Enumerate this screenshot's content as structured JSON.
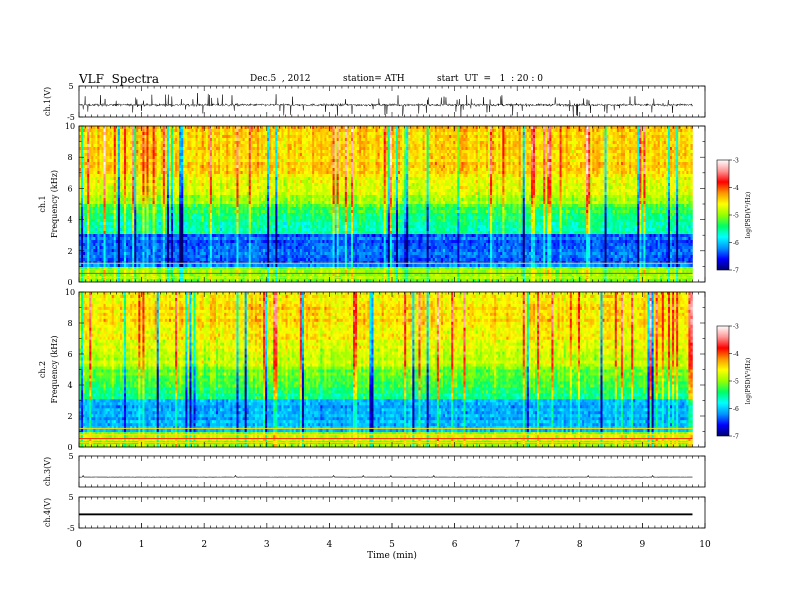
{
  "header": {
    "title": "VLF  Spectra",
    "date": "Dec.5  , 2012",
    "station": "station= ATH",
    "start_ut": "start  UT  =   1  : 20 : 0"
  },
  "chart_data": [
    {
      "type": "line",
      "panel": "ch1-waveform",
      "ylabel": "ch.1(V)",
      "ylim": [
        -5,
        5
      ],
      "ytick_labels": [
        "5",
        "-5"
      ],
      "x_range_min": [
        0,
        9.8
      ],
      "baseline": -1.1,
      "trace_color": "#000000",
      "description_values": {
        "typical_min": -2.5,
        "typical_max": 0.5,
        "peak_min": -4.6,
        "peak_max": 2.8
      }
    },
    {
      "type": "heatmap",
      "panel": "ch1-spectrogram",
      "ylabel_line1": "ch.1",
      "ylabel_line2": "Frequency  (kHz)",
      "ylim": [
        0,
        10
      ],
      "ytick_labels": [
        "0",
        "2",
        "4",
        "6",
        "8",
        "10"
      ],
      "x_range_min": [
        0,
        9.8
      ],
      "colorbar": {
        "label": "log(PSD(V²/Hz)",
        "range": [
          -7,
          -3
        ],
        "tick_labels": [
          "-3",
          "-4",
          "-5",
          "-6",
          "-7"
        ],
        "colors": [
          "#00006e",
          "#0000ff",
          "#0096ff",
          "#00ffff",
          "#00ff64",
          "#96ff00",
          "#ffff00",
          "#ff9600",
          "#ff0000",
          "#ff9696",
          "#ffffff"
        ]
      },
      "typical_log_psd": {
        "0-1kHz": -5.0,
        "1-3kHz": -6.3,
        "3-5kHz": -5.6,
        "5-7kHz": -4.9,
        "7-10kHz": -4.4
      }
    },
    {
      "type": "heatmap",
      "panel": "ch2-spectrogram",
      "ylabel_line1": "ch.2",
      "ylabel_line2": "Frequency  (kHz)",
      "ylim": [
        0,
        10
      ],
      "ytick_labels": [
        "0",
        "2",
        "4",
        "6",
        "8",
        "10"
      ],
      "x_range_min": [
        0,
        9.8
      ],
      "colorbar": {
        "label": "log(PSD(V²/Hz)",
        "range": [
          -7,
          -3
        ],
        "tick_labels": [
          "-3",
          "-4",
          "-5",
          "-6",
          "-7"
        ],
        "colors": [
          "#00006e",
          "#0000ff",
          "#0096ff",
          "#00ffff",
          "#00ff64",
          "#96ff00",
          "#ffff00",
          "#ff9600",
          "#ff0000",
          "#ff9696",
          "#ffffff"
        ]
      },
      "typical_log_psd": {
        "0-1kHz": -5.0,
        "1-3kHz": -6.1,
        "3-5kHz": -5.5,
        "5-7kHz": -4.9,
        "7-10kHz": -4.5
      }
    },
    {
      "type": "line",
      "panel": "ch3-waveform",
      "ylabel": "ch.3(V)",
      "ylim": [
        -5,
        5
      ],
      "ytick_labels": [
        "5"
      ],
      "x_range_min": [
        0,
        9.8
      ],
      "baseline": -1.8,
      "trace_color": "#000000"
    },
    {
      "type": "line",
      "panel": "ch4-waveform",
      "ylabel": "ch.4(V)",
      "ylim": [
        -5,
        5
      ],
      "ytick_labels": [
        "5",
        "-5"
      ],
      "x_range_min": [
        0,
        9.8
      ],
      "baseline": -0.6,
      "band_halfwidth": 0.3,
      "trace_color": "#000000"
    }
  ],
  "xaxis": {
    "label": "Time  (min)",
    "xlim": [
      0,
      10
    ],
    "tick_labels": [
      "0",
      "1",
      "2",
      "3",
      "4",
      "5",
      "6",
      "7",
      "8",
      "9",
      "10"
    ]
  }
}
